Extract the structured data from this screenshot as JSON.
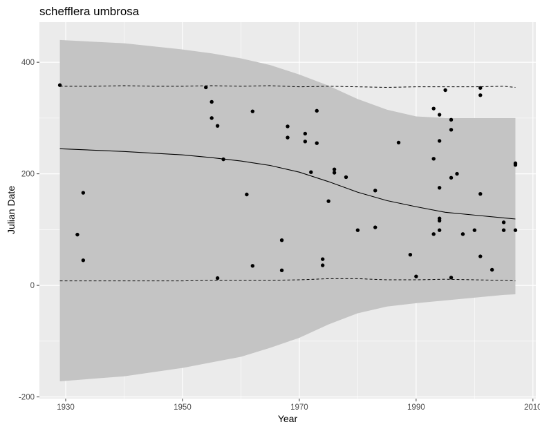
{
  "chart_data": {
    "type": "scatter",
    "title": "schefflera umbrosa",
    "xlabel": "Year",
    "ylabel": "Julian Date",
    "xlim": [
      1925.5,
      2010.5
    ],
    "ylim": [
      -203,
      472
    ],
    "x_ticks": [
      1930,
      1950,
      1970,
      1990,
      2010
    ],
    "y_ticks": [
      -200,
      0,
      200,
      400
    ],
    "grid": true,
    "legend": "none",
    "colors": {
      "panel": "#ebebeb",
      "grid_major": "#ffffff",
      "ribbon": "#c4c4c4",
      "points": "#000000",
      "lines": "#000000"
    },
    "points": [
      [
        1929,
        359
      ],
      [
        1932,
        91
      ],
      [
        1933,
        166
      ],
      [
        1933,
        45
      ],
      [
        1954,
        355
      ],
      [
        1955,
        329
      ],
      [
        1955,
        300
      ],
      [
        1956,
        286
      ],
      [
        1956,
        13
      ],
      [
        1957,
        226
      ],
      [
        1961,
        163
      ],
      [
        1962,
        312
      ],
      [
        1962,
        35
      ],
      [
        1967,
        81
      ],
      [
        1967,
        27
      ],
      [
        1968,
        285
      ],
      [
        1968,
        265
      ],
      [
        1971,
        272
      ],
      [
        1971,
        258
      ],
      [
        1972,
        203
      ],
      [
        1973,
        313
      ],
      [
        1973,
        255
      ],
      [
        1974,
        47
      ],
      [
        1974,
        36
      ],
      [
        1975,
        151
      ],
      [
        1976,
        208
      ],
      [
        1976,
        202
      ],
      [
        1978,
        194
      ],
      [
        1980,
        99
      ],
      [
        1983,
        170
      ],
      [
        1983,
        104
      ],
      [
        1987,
        256
      ],
      [
        1989,
        55
      ],
      [
        1990,
        16
      ],
      [
        1993,
        317
      ],
      [
        1993,
        227
      ],
      [
        1993,
        92
      ],
      [
        1994,
        306
      ],
      [
        1994,
        259
      ],
      [
        1994,
        175
      ],
      [
        1994,
        120
      ],
      [
        1994,
        116
      ],
      [
        1994,
        99
      ],
      [
        1995,
        350
      ],
      [
        1996,
        297
      ],
      [
        1996,
        279
      ],
      [
        1996,
        193
      ],
      [
        1996,
        14
      ],
      [
        1997,
        200
      ],
      [
        1998,
        92
      ],
      [
        2000,
        99
      ],
      [
        2001,
        354
      ],
      [
        2001,
        341
      ],
      [
        2001,
        164
      ],
      [
        2001,
        52
      ],
      [
        2003,
        28
      ],
      [
        2005,
        113
      ],
      [
        2005,
        99
      ],
      [
        2007,
        219
      ],
      [
        2007,
        216
      ],
      [
        2007,
        99
      ]
    ],
    "fit_line": [
      [
        1929,
        245
      ],
      [
        1940,
        240
      ],
      [
        1950,
        234
      ],
      [
        1955,
        229
      ],
      [
        1960,
        223
      ],
      [
        1965,
        215
      ],
      [
        1970,
        203
      ],
      [
        1975,
        186
      ],
      [
        1980,
        167
      ],
      [
        1985,
        152
      ],
      [
        1990,
        141
      ],
      [
        1995,
        131
      ],
      [
        2000,
        126
      ],
      [
        2005,
        121
      ],
      [
        2007,
        119
      ]
    ],
    "upper_quantile": [
      [
        1929,
        357
      ],
      [
        1935,
        357
      ],
      [
        1940,
        358
      ],
      [
        1945,
        357
      ],
      [
        1950,
        357
      ],
      [
        1955,
        358
      ],
      [
        1960,
        357
      ],
      [
        1965,
        358
      ],
      [
        1970,
        356
      ],
      [
        1975,
        357
      ],
      [
        1980,
        356
      ],
      [
        1985,
        355
      ],
      [
        1990,
        356
      ],
      [
        1995,
        356
      ],
      [
        2000,
        356
      ],
      [
        2005,
        357
      ],
      [
        2007,
        355
      ]
    ],
    "lower_quantile": [
      [
        1929,
        8
      ],
      [
        1935,
        8
      ],
      [
        1940,
        8
      ],
      [
        1945,
        8
      ],
      [
        1950,
        8
      ],
      [
        1955,
        9
      ],
      [
        1960,
        9
      ],
      [
        1965,
        9
      ],
      [
        1970,
        10
      ],
      [
        1975,
        12
      ],
      [
        1980,
        12
      ],
      [
        1985,
        10
      ],
      [
        1990,
        10
      ],
      [
        1995,
        11
      ],
      [
        2000,
        10
      ],
      [
        2005,
        9
      ],
      [
        2007,
        8
      ]
    ],
    "ribbon_upper": [
      [
        1929,
        440
      ],
      [
        1940,
        434
      ],
      [
        1950,
        423
      ],
      [
        1955,
        416
      ],
      [
        1960,
        407
      ],
      [
        1965,
        395
      ],
      [
        1970,
        378
      ],
      [
        1975,
        358
      ],
      [
        1980,
        334
      ],
      [
        1985,
        315
      ],
      [
        1990,
        303
      ],
      [
        1995,
        300
      ],
      [
        2000,
        300
      ],
      [
        2005,
        300
      ],
      [
        2007,
        300
      ]
    ],
    "ribbon_lower": [
      [
        1929,
        -172
      ],
      [
        1940,
        -163
      ],
      [
        1950,
        -148
      ],
      [
        1955,
        -138
      ],
      [
        1960,
        -128
      ],
      [
        1965,
        -112
      ],
      [
        1970,
        -94
      ],
      [
        1975,
        -70
      ],
      [
        1980,
        -50
      ],
      [
        1985,
        -38
      ],
      [
        1990,
        -32
      ],
      [
        1995,
        -27
      ],
      [
        2000,
        -22
      ],
      [
        2005,
        -17
      ],
      [
        2007,
        -16
      ]
    ]
  }
}
